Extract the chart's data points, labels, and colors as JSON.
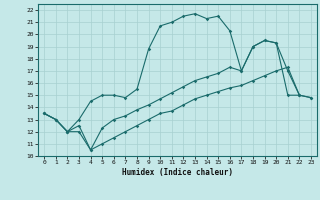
{
  "xlabel": "Humidex (Indice chaleur)",
  "bg_color": "#c5e8e8",
  "line_color": "#1a6b6b",
  "xlim": [
    -0.5,
    23.5
  ],
  "ylim": [
    10,
    22.5
  ],
  "xticks": [
    0,
    1,
    2,
    3,
    4,
    5,
    6,
    7,
    8,
    9,
    10,
    11,
    12,
    13,
    14,
    15,
    16,
    17,
    18,
    19,
    20,
    21,
    22,
    23
  ],
  "yticks": [
    10,
    11,
    12,
    13,
    14,
    15,
    16,
    17,
    18,
    19,
    20,
    21,
    22
  ],
  "grid_color": "#a8d0d0",
  "line1_x": [
    0,
    1,
    2,
    3,
    4,
    5,
    6,
    7,
    8,
    9,
    10,
    11,
    12,
    13,
    14,
    15,
    16,
    17,
    18,
    19,
    20,
    21,
    22
  ],
  "line1_y": [
    13.5,
    13.0,
    12.0,
    13.0,
    14.5,
    15.0,
    15.0,
    14.8,
    15.5,
    18.8,
    20.7,
    21.0,
    21.5,
    21.7,
    21.3,
    21.5,
    20.3,
    17.0,
    19.0,
    19.5,
    19.3,
    17.0,
    15.0
  ],
  "line2_x": [
    0,
    1,
    2,
    3,
    4,
    5,
    6,
    7,
    8,
    9,
    10,
    11,
    12,
    13,
    14,
    15,
    16,
    17,
    18,
    19,
    20,
    21,
    22,
    23
  ],
  "line2_y": [
    13.5,
    13.0,
    12.0,
    12.5,
    10.5,
    12.3,
    13.0,
    13.3,
    13.8,
    14.2,
    14.7,
    15.2,
    15.7,
    16.2,
    16.5,
    16.8,
    17.3,
    17.0,
    19.0,
    19.5,
    19.3,
    15.0,
    15.0,
    14.8
  ],
  "line3_x": [
    0,
    1,
    2,
    3,
    4,
    5,
    6,
    7,
    8,
    9,
    10,
    11,
    12,
    13,
    14,
    15,
    16,
    17,
    18,
    19,
    20,
    21,
    22,
    23
  ],
  "line3_y": [
    13.5,
    13.0,
    12.0,
    12.0,
    10.5,
    11.0,
    11.5,
    12.0,
    12.5,
    13.0,
    13.5,
    13.7,
    14.2,
    14.7,
    15.0,
    15.3,
    15.6,
    15.8,
    16.2,
    16.6,
    17.0,
    17.3,
    15.0,
    14.8
  ]
}
